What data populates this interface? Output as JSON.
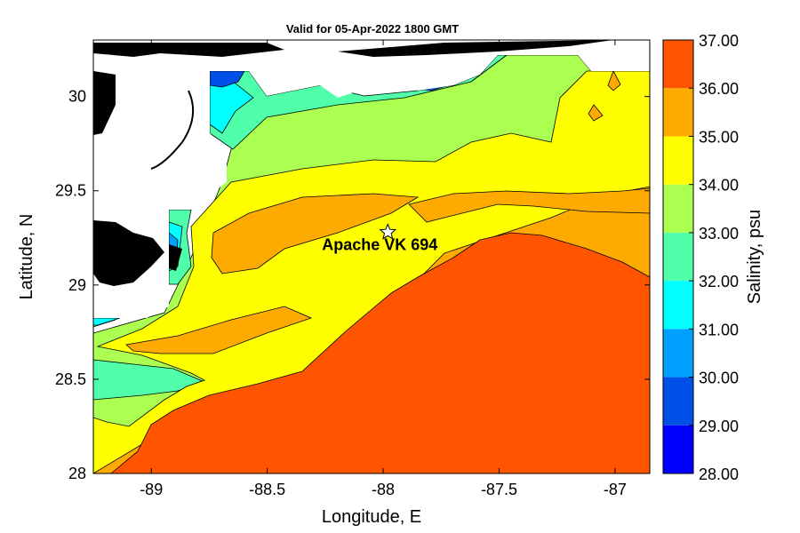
{
  "chart_data": {
    "type": "heatmap",
    "title": "Valid for 05-Apr-2022 1800 GMT",
    "xlabel": "Longitude, E",
    "ylabel": "Latitude, N",
    "colorbar_label": "Salinity, psu",
    "xlim": [
      -89.25,
      -86.85
    ],
    "ylim": [
      28.0,
      30.3
    ],
    "x_ticks": [
      -89,
      -88.5,
      -88,
      -87.5,
      -87
    ],
    "x_tick_labels": [
      "-89",
      "-88.5",
      "-88",
      "-87.5",
      "-87"
    ],
    "y_ticks": [
      28,
      28.5,
      29,
      29.5,
      30
    ],
    "y_tick_labels": [
      "28",
      "28.5",
      "29",
      "29.5",
      "30"
    ],
    "colorbar": {
      "levels": [
        28,
        29,
        30,
        31,
        32,
        33,
        34,
        35,
        36,
        37
      ],
      "labels": [
        "28.00",
        "29.00",
        "30.00",
        "31.00",
        "32.00",
        "33.00",
        "34.00",
        "35.00",
        "36.00",
        "37.00"
      ],
      "colors": [
        "#0000ff",
        "#0050e8",
        "#00a0ff",
        "#00ffff",
        "#50ffaa",
        "#aaff50",
        "#ffff00",
        "#ffaa00",
        "#ff5500"
      ]
    },
    "annotations": [
      {
        "label": "Apache VK 694",
        "marker": "star",
        "lon": -87.98,
        "lat": 29.28
      }
    ],
    "contour_regions": [
      {
        "level_min": 36,
        "level_max": 37,
        "color": "#ff5500",
        "description": "high salinity offshore south-east"
      },
      {
        "level_min": 35,
        "level_max": 36,
        "color": "#ffaa00"
      },
      {
        "level_min": 34,
        "level_max": 35,
        "color": "#ffff00"
      },
      {
        "level_min": 33,
        "level_max": 34,
        "color": "#aaff50"
      },
      {
        "level_min": 32,
        "level_max": 33,
        "color": "#50ffaa"
      },
      {
        "level_min": 31,
        "level_max": 32,
        "color": "#00ffff"
      },
      {
        "level_min": 29,
        "level_max": 31,
        "color": "#0050e8"
      }
    ],
    "grid": false,
    "legend_position": "right colorbar"
  }
}
